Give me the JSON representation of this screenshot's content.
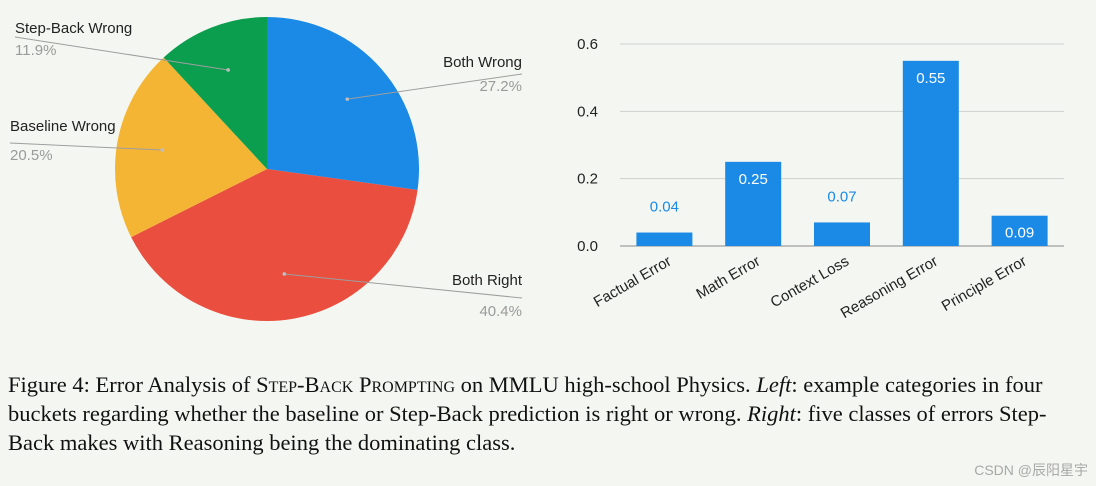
{
  "chart_data": [
    {
      "type": "pie",
      "slices": [
        {
          "label": "Both Wrong",
          "value": 27.2,
          "pct_label": "27.2%",
          "color": "#1a8ae6"
        },
        {
          "label": "Both Right",
          "value": 40.4,
          "pct_label": "40.4%",
          "color": "#ea4e3e"
        },
        {
          "label": "Baseline Wrong",
          "value": 20.5,
          "pct_label": "20.5%",
          "color": "#f4b535"
        },
        {
          "label": "Step-Back Wrong",
          "value": 11.9,
          "pct_label": "11.9%",
          "color": "#0b9e4e"
        }
      ]
    },
    {
      "type": "bar",
      "categories": [
        "Factual Error",
        "Math Error",
        "Context Loss",
        "Reasoning Error",
        "Principle Error"
      ],
      "values": [
        0.04,
        0.25,
        0.07,
        0.55,
        0.09
      ],
      "value_labels": [
        "0.04",
        "0.25",
        "0.07",
        "0.55",
        "0.09"
      ],
      "ylim": [
        0,
        0.6
      ],
      "yticks": [
        0,
        0.2,
        0.4,
        0.6
      ],
      "ytick_labels": [
        "0.0",
        "0.2",
        "0.4",
        "0.6"
      ],
      "bar_color": "#1a8ae6",
      "grid": true
    }
  ],
  "caption": {
    "fig_label": "Figure 4: Error Analysis of ",
    "method": "Step-Back Prompting",
    "after_method": " on MMLU high-school Physics. ",
    "left_word": "Left",
    "left_text": ": example categories in four buckets regarding whether the baseline or Step-Back prediction is right or wrong. ",
    "right_word": "Right",
    "right_text": ": five classes of errors Step-Back makes with Reasoning being the dominating class."
  },
  "watermark": "CSDN @辰阳星宇"
}
